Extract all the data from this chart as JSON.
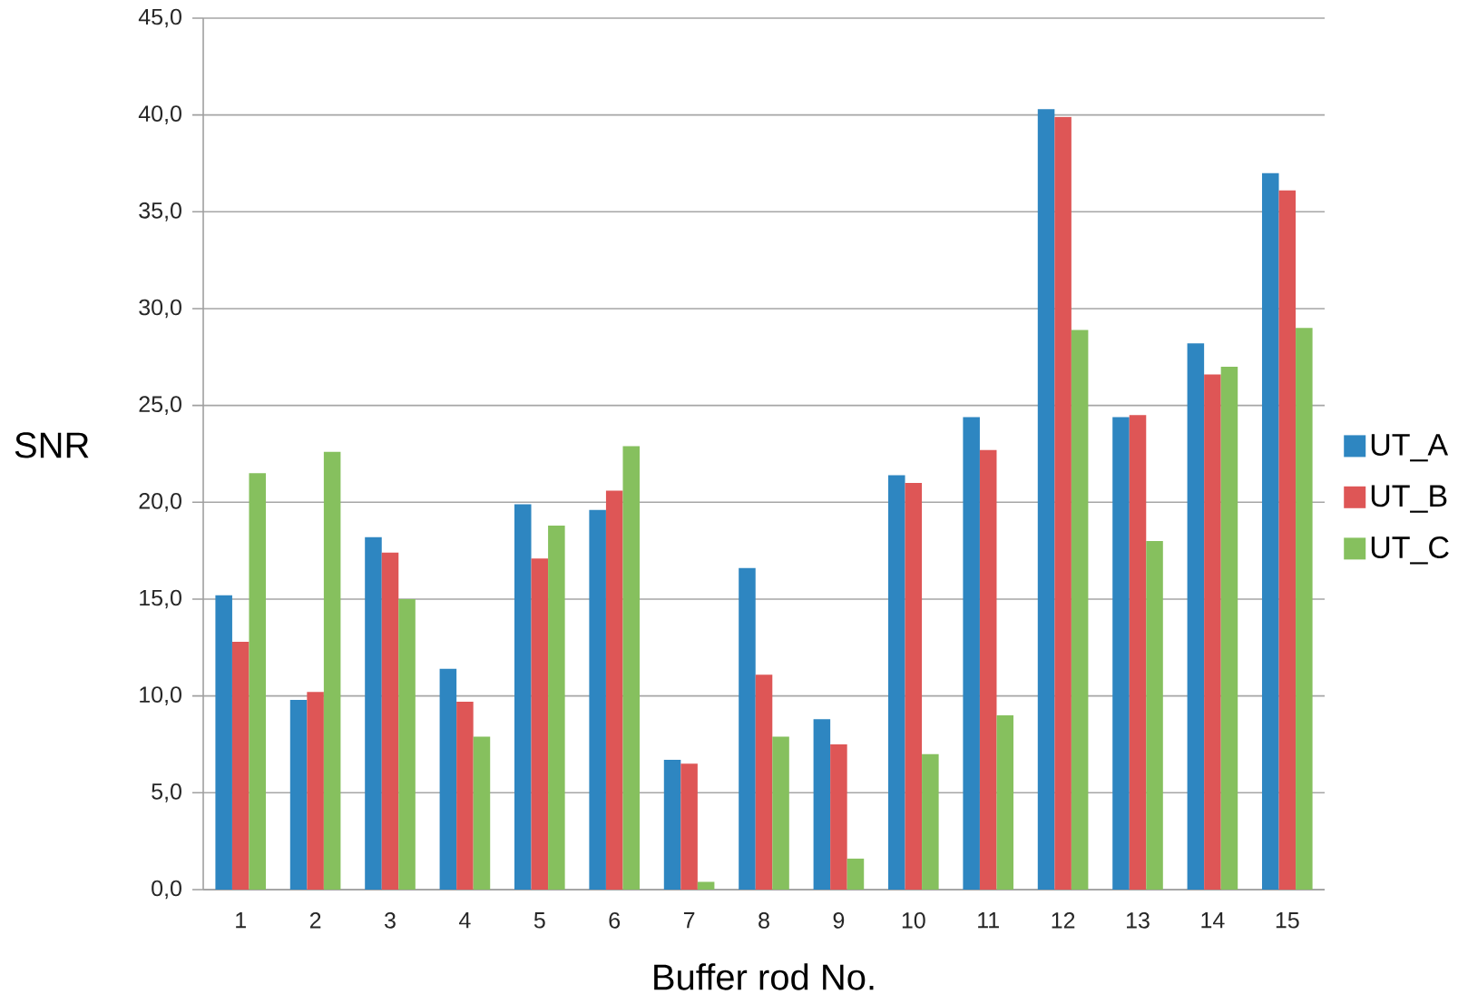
{
  "chart_data": {
    "type": "bar",
    "xlabel": "Buffer rod No.",
    "ylabel": "SNR",
    "categories": [
      "1",
      "2",
      "3",
      "4",
      "5",
      "6",
      "7",
      "8",
      "9",
      "10",
      "11",
      "12",
      "13",
      "14",
      "15"
    ],
    "series": [
      {
        "name": "UT_A",
        "color": "#2e86c1",
        "values": [
          15.2,
          9.8,
          18.2,
          11.4,
          19.9,
          19.6,
          6.7,
          16.6,
          8.8,
          21.4,
          24.4,
          40.3,
          24.4,
          28.2,
          37.0
        ]
      },
      {
        "name": "UT_B",
        "color": "#de5656",
        "values": [
          12.8,
          10.2,
          17.4,
          9.7,
          17.1,
          20.6,
          6.5,
          11.1,
          7.5,
          21.0,
          22.7,
          39.9,
          24.5,
          26.6,
          36.1
        ]
      },
      {
        "name": "UT_C",
        "color": "#86c05e",
        "values": [
          21.5,
          22.6,
          15.0,
          7.9,
          18.8,
          22.9,
          0.4,
          7.9,
          1.6,
          7.0,
          9.0,
          28.9,
          18.0,
          27.0,
          29.0
        ]
      }
    ],
    "ylim": [
      0,
      45
    ],
    "yticks": [
      {
        "value": 0,
        "label": "0,0"
      },
      {
        "value": 5,
        "label": "5,0"
      },
      {
        "value": 10,
        "label": "10,0"
      },
      {
        "value": 15,
        "label": "15,0"
      },
      {
        "value": 20,
        "label": "20,0"
      },
      {
        "value": 25,
        "label": "25,0"
      },
      {
        "value": 30,
        "label": "30,0"
      },
      {
        "value": 35,
        "label": "35,0"
      },
      {
        "value": 40,
        "label": "40,0"
      },
      {
        "value": 45,
        "label": "45,0"
      }
    ],
    "grid": "y",
    "legend": "right"
  }
}
